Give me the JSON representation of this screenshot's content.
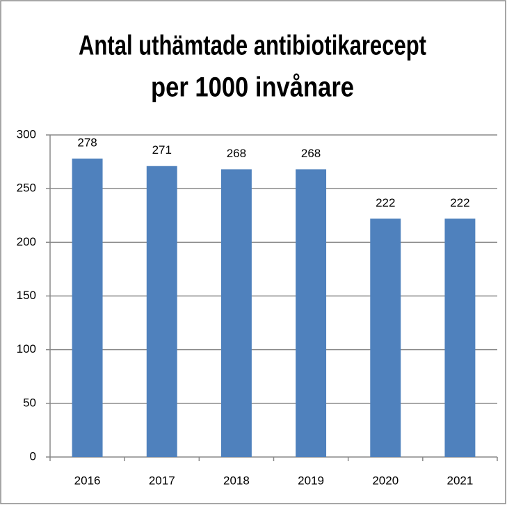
{
  "chart_data": {
    "type": "bar",
    "title": [
      "Antal uthämtade antibiotikarecept",
      "per 1000 invånare"
    ],
    "categories": [
      "2016",
      "2017",
      "2018",
      "2019",
      "2020",
      "2021"
    ],
    "values": [
      278,
      271,
      268,
      268,
      222,
      222
    ],
    "color": "#4f81bd",
    "ylim": [
      0,
      300
    ],
    "yticks": [
      0,
      50,
      100,
      150,
      200,
      250,
      300
    ],
    "grid": true
  }
}
